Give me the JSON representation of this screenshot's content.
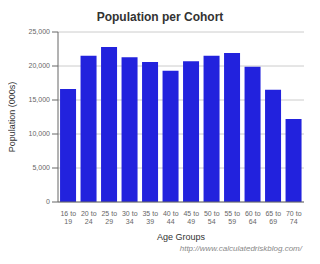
{
  "chart_data": {
    "type": "bar",
    "title": "Population per Cohort",
    "categories": [
      "16 to\n19",
      "20 to\n24",
      "25 to\n29",
      "30 to\n34",
      "35 to\n39",
      "40 to\n44",
      "45 to\n49",
      "50 to\n54",
      "55 to\n59",
      "60 to\n64",
      "65 to\n69",
      "70 to\n74"
    ],
    "values": [
      16600,
      21500,
      22800,
      21300,
      20600,
      19300,
      20700,
      21500,
      21900,
      19900,
      16500,
      12200
    ],
    "color": "#2222dd",
    "xlabel": "Age Groups",
    "ylabel": "Population (000s)",
    "annotations": [
      "http://www.calculatedriskblog.com/"
    ],
    "ylim": [
      0,
      25000
    ],
    "yticks": [
      0,
      {
        "value": 5000,
        "label": "5,000"
      },
      {
        "value": 10000,
        "label": "10,000"
      },
      {
        "value": 15000,
        "label": "15,000"
      },
      {
        "value": 20000,
        "label": "20,000"
      },
      {
        "value": 25000,
        "label": "25,000"
      }
    ],
    "grid": true
  }
}
